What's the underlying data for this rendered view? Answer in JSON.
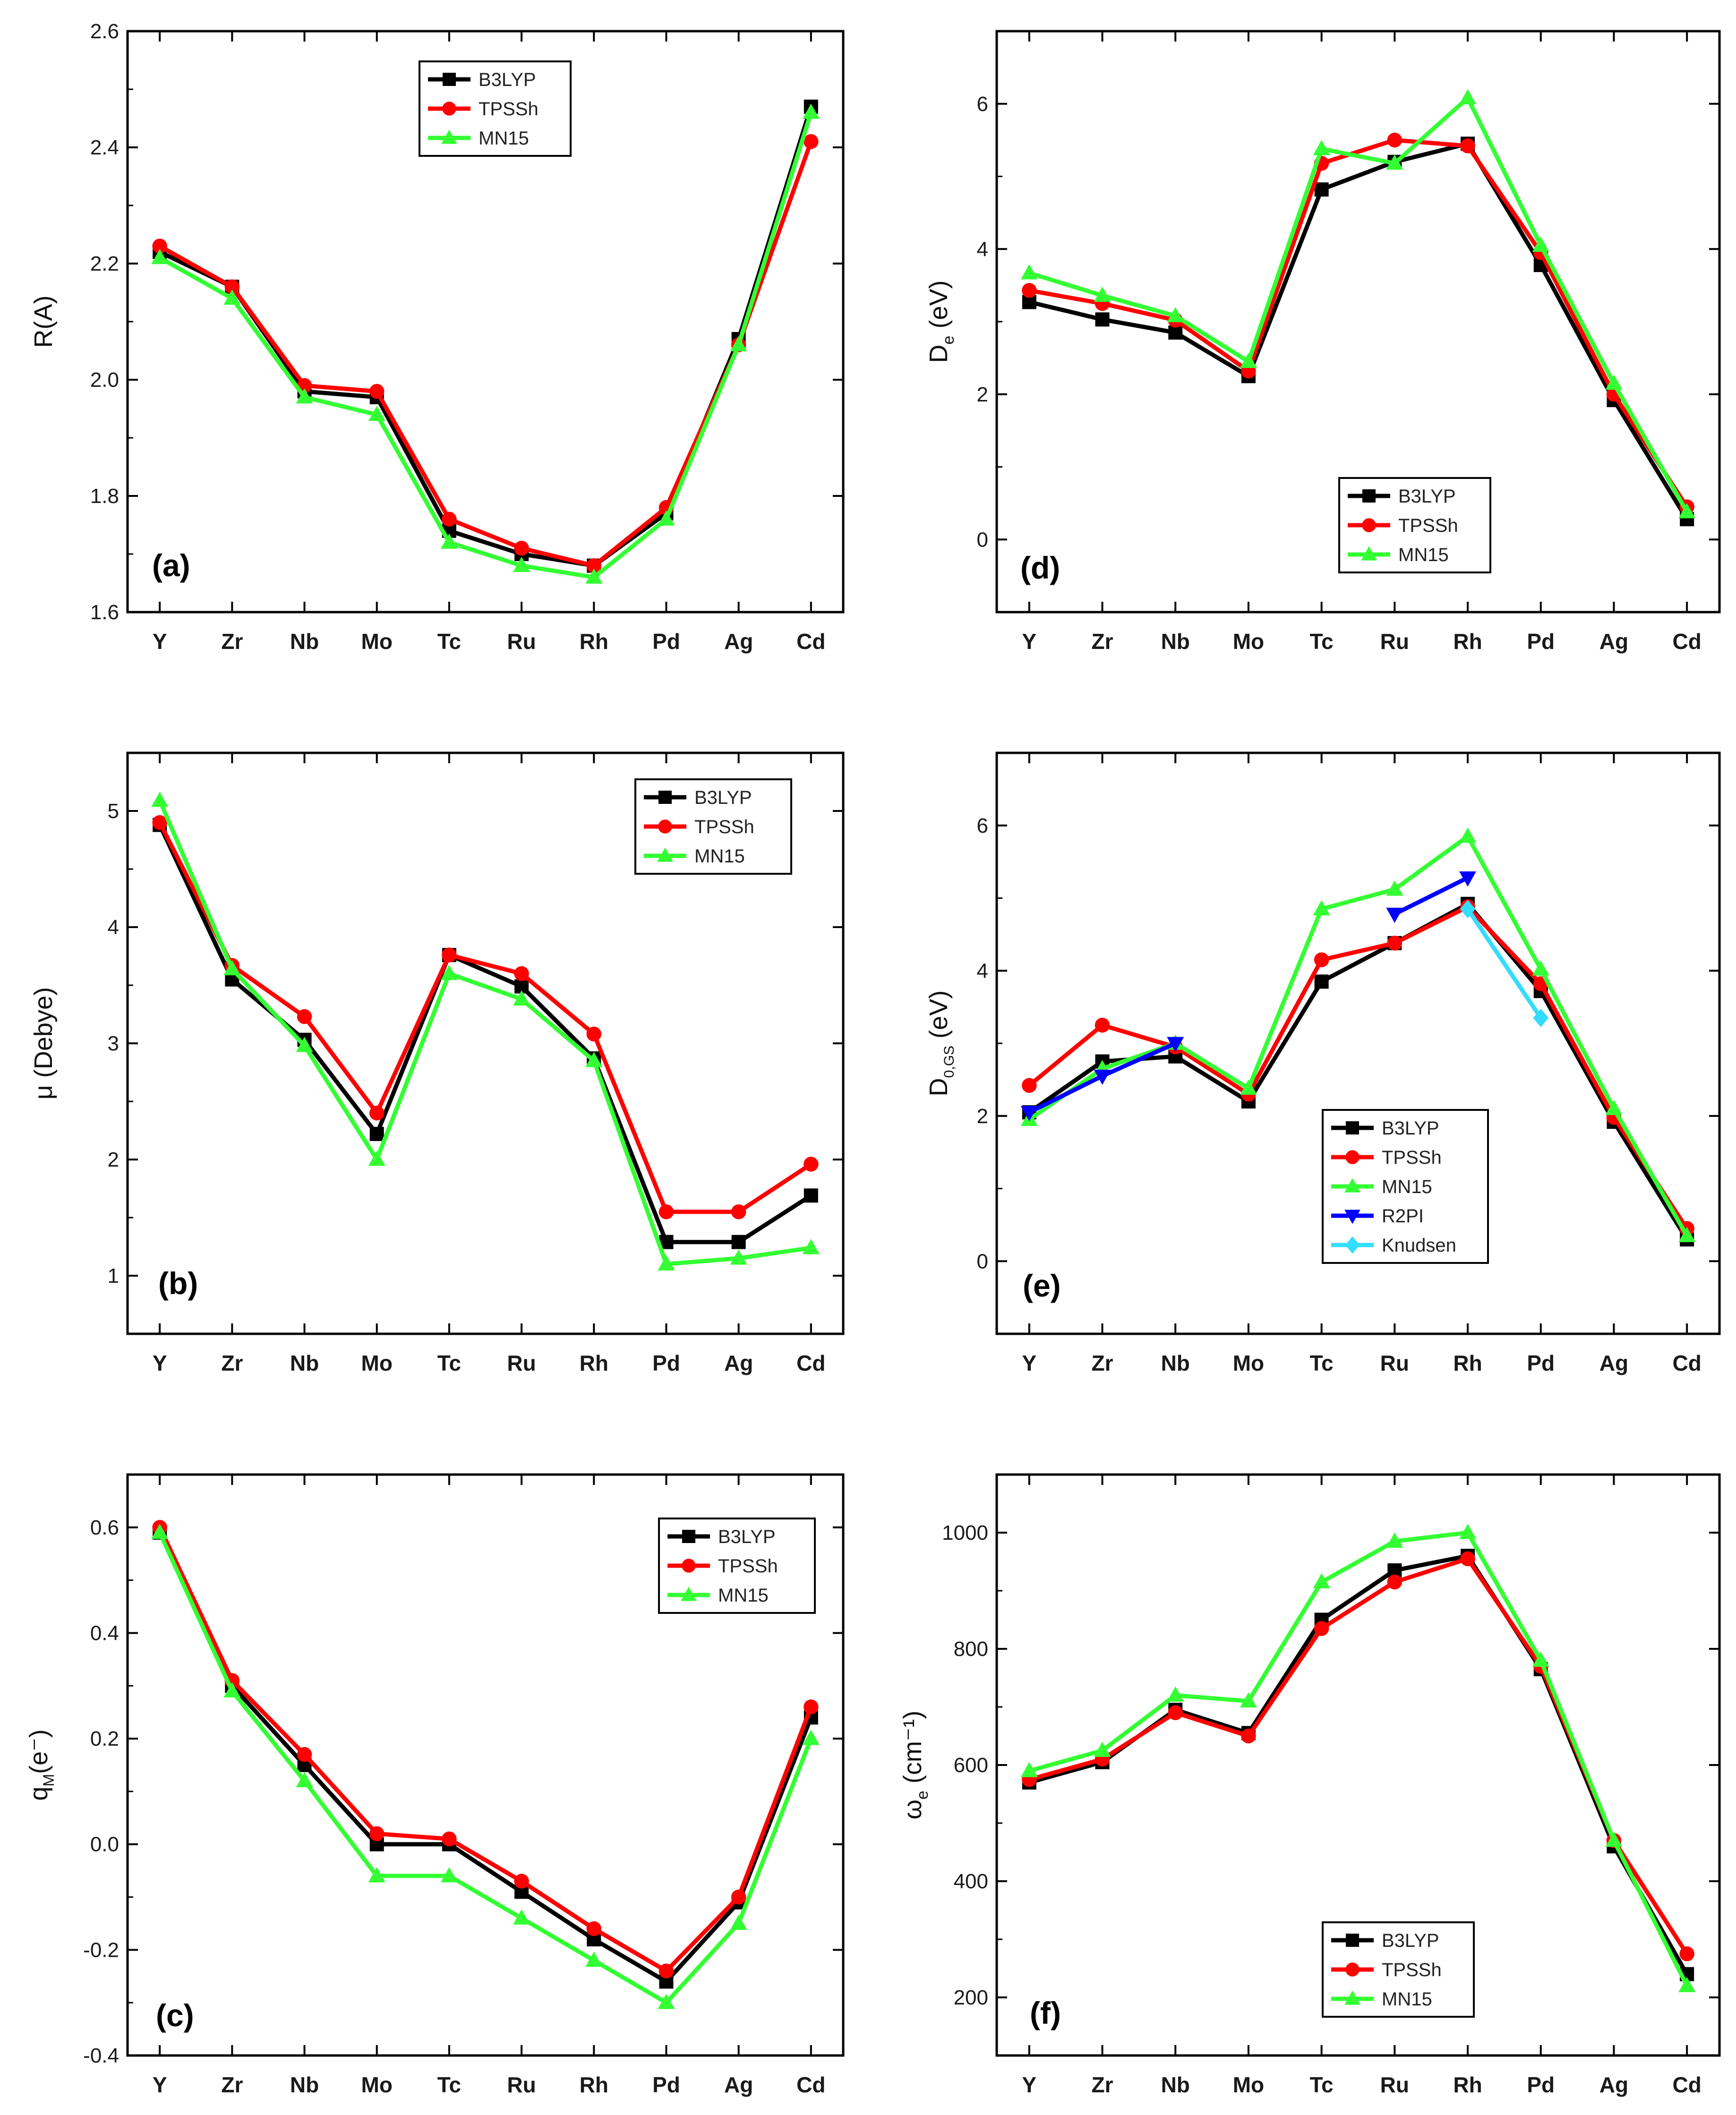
{
  "figure": {
    "series_colors": {
      "B3LYP": "#000000",
      "TPSSh": "#ff0000",
      "MN15": "#33ff33",
      "R2PI": "#0000ff",
      "Knudsen": "#33ddff"
    }
  },
  "chart_data": [
    {
      "id": "a",
      "type": "line",
      "tag": "(a)",
      "ylabel": "R(A)",
      "categories": [
        "Y",
        "Zr",
        "Nb",
        "Mo",
        "Tc",
        "Ru",
        "Rh",
        "Pd",
        "Ag",
        "Cd"
      ],
      "ylim": [
        1.6,
        2.6
      ],
      "yticks": [
        1.6,
        1.8,
        2.0,
        2.2,
        2.4,
        2.6
      ],
      "ytick_labels": [
        "1.6",
        "1.8",
        "2.0",
        "2.2",
        "2.4",
        "2.6"
      ],
      "legend": [
        "B3LYP",
        "TPSSh",
        "MN15"
      ],
      "series": [
        {
          "name": "B3LYP",
          "marker": "square",
          "values": [
            2.22,
            2.16,
            1.98,
            1.97,
            1.74,
            1.7,
            1.68,
            1.77,
            2.07,
            2.47
          ]
        },
        {
          "name": "TPSSh",
          "marker": "circle",
          "values": [
            2.23,
            2.16,
            1.99,
            1.98,
            1.76,
            1.71,
            1.68,
            1.78,
            2.06,
            2.41
          ]
        },
        {
          "name": "MN15",
          "marker": "triangle",
          "values": [
            2.21,
            2.14,
            1.97,
            1.94,
            1.72,
            1.68,
            1.66,
            1.76,
            2.06,
            2.46
          ]
        }
      ]
    },
    {
      "id": "d",
      "type": "line",
      "tag": "(d)",
      "ylabel": "D",
      "ylabel_sub": "e",
      "ylabel_rest": " (eV)",
      "categories": [
        "Y",
        "Zr",
        "Nb",
        "Mo",
        "Tc",
        "Ru",
        "Rh",
        "Pd",
        "Ag",
        "Cd"
      ],
      "ylim": [
        -1.0,
        7.0
      ],
      "yticks": [
        0,
        2,
        4,
        6
      ],
      "ytick_labels": [
        "0",
        "2",
        "4",
        "6"
      ],
      "legend": [
        "B3LYP",
        "TPSSh",
        "MN15"
      ],
      "series": [
        {
          "name": "B3LYP",
          "marker": "square",
          "values": [
            3.27,
            3.03,
            2.85,
            2.25,
            4.82,
            5.2,
            5.45,
            3.78,
            1.92,
            0.28
          ]
        },
        {
          "name": "TPSSh",
          "marker": "circle",
          "values": [
            3.43,
            3.25,
            3.02,
            2.32,
            5.18,
            5.5,
            5.42,
            3.95,
            2.0,
            0.45
          ]
        },
        {
          "name": "MN15",
          "marker": "triangle",
          "values": [
            3.67,
            3.36,
            3.08,
            2.45,
            5.38,
            5.18,
            6.08,
            4.05,
            2.15,
            0.38
          ]
        }
      ]
    },
    {
      "id": "b",
      "type": "line",
      "tag": "(b)",
      "ylabel": "μ (Debye)",
      "categories": [
        "Y",
        "Zr",
        "Nb",
        "Mo",
        "Tc",
        "Ru",
        "Rh",
        "Pd",
        "Ag",
        "Cd"
      ],
      "ylim": [
        0.5,
        5.5
      ],
      "yticks": [
        1,
        2,
        3,
        4,
        5
      ],
      "ytick_labels": [
        "1",
        "2",
        "3",
        "4",
        "5"
      ],
      "legend": [
        "B3LYP",
        "TPSSh",
        "MN15"
      ],
      "series": [
        {
          "name": "B3LYP",
          "marker": "square",
          "values": [
            4.88,
            3.55,
            3.03,
            2.22,
            3.76,
            3.49,
            2.87,
            1.29,
            1.29,
            1.69
          ]
        },
        {
          "name": "TPSSh",
          "marker": "circle",
          "values": [
            4.9,
            3.67,
            3.23,
            2.4,
            3.76,
            3.6,
            3.08,
            1.55,
            1.55,
            1.96
          ]
        },
        {
          "name": "MN15",
          "marker": "triangle",
          "values": [
            5.09,
            3.64,
            2.98,
            2.0,
            3.6,
            3.38,
            2.85,
            1.1,
            1.15,
            1.24
          ]
        }
      ]
    },
    {
      "id": "e",
      "type": "line",
      "tag": "(e)",
      "ylabel": "D",
      "ylabel_sub": "0,GS",
      "ylabel_rest": " (eV)",
      "categories": [
        "Y",
        "Zr",
        "Nb",
        "Mo",
        "Tc",
        "Ru",
        "Rh",
        "Pd",
        "Ag",
        "Cd"
      ],
      "ylim": [
        -1.0,
        7.0
      ],
      "yticks": [
        0,
        2,
        4,
        6
      ],
      "ytick_labels": [
        "0",
        "2",
        "4",
        "6"
      ],
      "legend": [
        "B3LYP",
        "TPSSh",
        "MN15",
        "R2PI",
        "Knudsen"
      ],
      "series": [
        {
          "name": "B3LYP",
          "marker": "square",
          "values": [
            2.05,
            2.75,
            2.82,
            2.2,
            3.85,
            4.38,
            4.92,
            3.72,
            1.92,
            0.3
          ]
        },
        {
          "name": "TPSSh",
          "marker": "circle",
          "values": [
            2.42,
            3.25,
            2.95,
            2.3,
            4.15,
            4.38,
            4.88,
            3.82,
            1.98,
            0.45
          ]
        },
        {
          "name": "MN15",
          "marker": "triangle",
          "values": [
            1.95,
            2.65,
            3.0,
            2.38,
            4.85,
            5.12,
            5.85,
            4.02,
            2.1,
            0.35
          ]
        },
        {
          "name": "R2PI",
          "marker": "triangle-down",
          "values": [
            2.05,
            2.55,
            3.0,
            null,
            null,
            4.78,
            5.28,
            null,
            null,
            null
          ]
        },
        {
          "name": "Knudsen",
          "marker": "diamond",
          "values": [
            null,
            null,
            null,
            null,
            null,
            null,
            4.85,
            3.35,
            null,
            null
          ]
        }
      ]
    },
    {
      "id": "c",
      "type": "line",
      "tag": "(c)",
      "ylabel": "q",
      "ylabel_sub": "M",
      "ylabel_rest": "(e⁻)",
      "categories": [
        "Y",
        "Zr",
        "Nb",
        "Mo",
        "Tc",
        "Ru",
        "Rh",
        "Pd",
        "Ag",
        "Cd"
      ],
      "ylim": [
        -0.4,
        0.7
      ],
      "yticks": [
        -0.4,
        -0.2,
        0.0,
        0.2,
        0.4,
        0.6
      ],
      "ytick_labels": [
        "-0.4",
        "-0.2",
        "0.0",
        "0.2",
        "0.4",
        "0.6"
      ],
      "legend": [
        "B3LYP",
        "TPSSh",
        "MN15"
      ],
      "series": [
        {
          "name": "B3LYP",
          "marker": "square",
          "values": [
            0.59,
            0.3,
            0.15,
            0.0,
            0.0,
            -0.09,
            -0.18,
            -0.26,
            -0.11,
            0.24
          ]
        },
        {
          "name": "TPSSh",
          "marker": "circle",
          "values": [
            0.6,
            0.31,
            0.17,
            0.02,
            0.01,
            -0.07,
            -0.16,
            -0.24,
            -0.1,
            0.26
          ]
        },
        {
          "name": "MN15",
          "marker": "triangle",
          "values": [
            0.59,
            0.29,
            0.12,
            -0.06,
            -0.06,
            -0.14,
            -0.22,
            -0.3,
            -0.15,
            0.2
          ]
        }
      ]
    },
    {
      "id": "f",
      "type": "line",
      "tag": "(f)",
      "ylabel": "ω",
      "ylabel_sub": "e",
      "ylabel_rest": " (cm⁻¹)",
      "categories": [
        "Y",
        "Zr",
        "Nb",
        "Mo",
        "Tc",
        "Ru",
        "Rh",
        "Pd",
        "Ag",
        "Cd"
      ],
      "ylim": [
        100,
        1100
      ],
      "yticks": [
        200,
        400,
        600,
        800,
        1000
      ],
      "ytick_labels": [
        "200",
        "400",
        "600",
        "800",
        "1000"
      ],
      "legend": [
        "B3LYP",
        "TPSSh",
        "MN15"
      ],
      "series": [
        {
          "name": "B3LYP",
          "marker": "square",
          "values": [
            570,
            605,
            695,
            655,
            850,
            935,
            960,
            765,
            460,
            240
          ]
        },
        {
          "name": "TPSSh",
          "marker": "circle",
          "values": [
            575,
            610,
            690,
            650,
            835,
            915,
            955,
            770,
            470,
            275
          ]
        },
        {
          "name": "MN15",
          "marker": "triangle",
          "values": [
            590,
            625,
            720,
            710,
            915,
            985,
            1000,
            780,
            470,
            220
          ]
        }
      ]
    }
  ]
}
